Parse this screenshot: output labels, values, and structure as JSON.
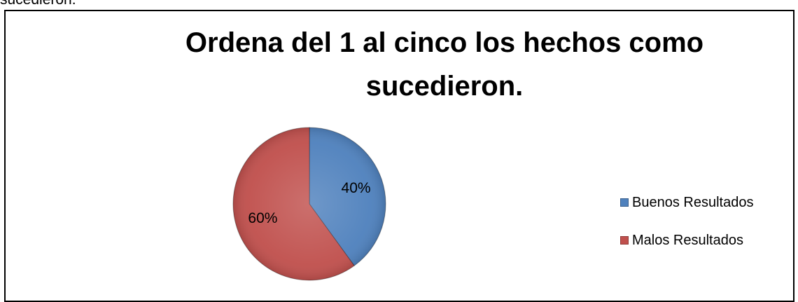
{
  "doc": {
    "fragment_text": "sucedieron."
  },
  "chart_data": {
    "type": "pie",
    "title_lines": [
      "Ordena del 1 al cinco los hechos como",
      "sucedieron."
    ],
    "title": "Ordena del 1 al cinco los hechos como sucedieron.",
    "categories": [
      "Buenos Resultados",
      "Malos Resultados"
    ],
    "values": [
      40,
      60
    ],
    "data_labels": [
      "40%",
      "60%"
    ],
    "colors": [
      "#4f81bd",
      "#c0504d"
    ],
    "legend_position": "right"
  }
}
